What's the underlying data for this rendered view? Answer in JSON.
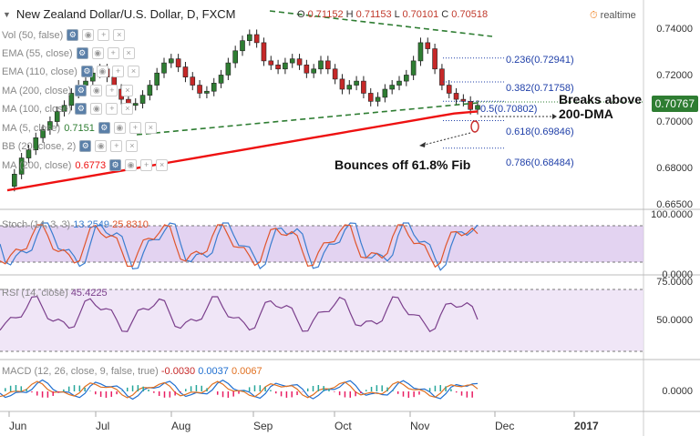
{
  "header": {
    "title": "New Zealand Dollar/U.S. Dollar, D, FXCM",
    "ohlc": {
      "o_label": "O",
      "o": "0.71152",
      "h_label": "H",
      "h": "0.71153",
      "l_label": "L",
      "l": "0.70101",
      "c_label": "C",
      "c": "0.70518"
    },
    "realtime_label": "realtime"
  },
  "indicators": [
    {
      "label": "Vol (50, false)"
    },
    {
      "label": "EMA (55, close)"
    },
    {
      "label": "EMA (110, close)"
    },
    {
      "label": "MA (200, close)"
    },
    {
      "label": "MA (100, close)"
    },
    {
      "label": "MA (5, close)",
      "value": "0.7151"
    },
    {
      "label": "BB (20, close, 2)"
    },
    {
      "label": "MA (200, close)",
      "value": "0.6773"
    }
  ],
  "price_axis": [
    "0.74000",
    "0.72000",
    "0.70000",
    "0.68000",
    "0.66500"
  ],
  "last_price": "0.70767",
  "fib_levels": [
    {
      "label": "0.236(0.72941)",
      "price": 0.72941
    },
    {
      "label": "0.382(0.71758)",
      "price": 0.71758
    },
    {
      "label": "0.5(0.70802)",
      "price": 0.70802
    },
    {
      "label": "0.618(0.69846)",
      "price": 0.69846
    },
    {
      "label": "0.786(0.68484)",
      "price": 0.68484
    }
  ],
  "annotations": {
    "breaks": "Breaks above\n200-DMA",
    "bounces": "Bounces off 61.8% Fib"
  },
  "stoch": {
    "label": "Stoch (14, 3, 3)",
    "k": "13.2549",
    "d": "25.8310",
    "axis": [
      "100.0000",
      "0.0000"
    ]
  },
  "rsi": {
    "label": "RSI (14, close)",
    "value": "45.4225",
    "axis": [
      "75.0000",
      "50.0000"
    ]
  },
  "macd": {
    "label": "MACD (12, 26, close, 9, false, true)",
    "v1": "-0.0030",
    "v2": "0.0037",
    "v3": "0.0067",
    "axis": [
      "0.0000"
    ]
  },
  "months": [
    "Jun",
    "Jul",
    "Aug",
    "Sep",
    "Oct",
    "Nov",
    "Dec",
    "2017"
  ],
  "colors": {
    "up": "#2e7d32",
    "down": "#c62828",
    "ma200": "#e11",
    "fib": "#1f3fa8",
    "stochK": "#3a7dd0",
    "stochD": "#e0552b",
    "rsi": "#7b3f8c",
    "band": "#dcc8ee",
    "trend": "#2e7d32"
  },
  "chart_data": {
    "type": "candlestick",
    "price_range": [
      0.66,
      0.75
    ],
    "close_path": [
      0.666,
      0.672,
      0.68,
      0.684,
      0.69,
      0.694,
      0.698,
      0.703,
      0.706,
      0.712,
      0.716,
      0.718,
      0.722,
      0.724,
      0.72,
      0.714,
      0.709,
      0.706,
      0.707,
      0.711,
      0.716,
      0.722,
      0.727,
      0.729,
      0.725,
      0.72,
      0.716,
      0.712,
      0.713,
      0.717,
      0.721,
      0.727,
      0.733,
      0.738,
      0.741,
      0.737,
      0.728,
      0.726,
      0.724,
      0.727,
      0.729,
      0.726,
      0.722,
      0.724,
      0.728,
      0.724,
      0.719,
      0.714,
      0.716,
      0.718,
      0.712,
      0.708,
      0.71,
      0.714,
      0.716,
      0.718,
      0.721,
      0.728,
      0.737,
      0.734,
      0.724,
      0.716,
      0.712,
      0.709,
      0.708,
      0.704,
      0.706
    ],
    "ma200_path": [
      0.664,
      0.666,
      0.668,
      0.67,
      0.672,
      0.674,
      0.676,
      0.678,
      0.68,
      0.682,
      0.684,
      0.686,
      0.688,
      0.69,
      0.692,
      0.694,
      0.696,
      0.698,
      0.7,
      0.702,
      0.703
    ]
  }
}
